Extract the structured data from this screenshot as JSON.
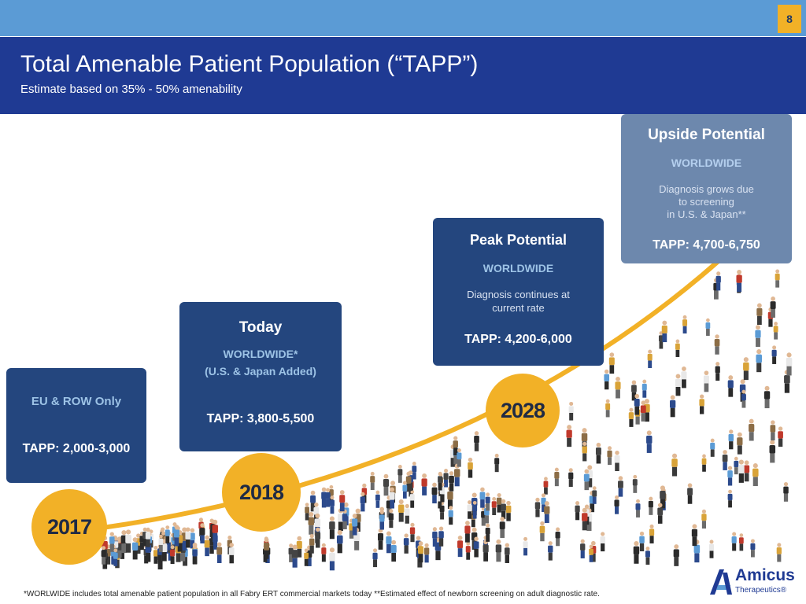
{
  "page_number": "8",
  "header": {
    "title": "Total Amenable Patient Population (“TAPP”)",
    "subtitle": "Estimate based on 35% - 50% amenability"
  },
  "boxes": {
    "y2017": {
      "region": "EU & ROW Only",
      "tapp": "TAPP: 2,000-3,000"
    },
    "y2018": {
      "heading": "Today",
      "region_line1": "WORLDWIDE*",
      "region_line2": "(U.S. & Japan Added)",
      "tapp": "TAPP: 3,800-5,500"
    },
    "y2028": {
      "heading": "Peak Potential",
      "region": "WORLDWIDE",
      "desc_line1": "Diagnosis continues at",
      "desc_line2": "current rate",
      "tapp": "TAPP: 4,200-6,000"
    },
    "upside": {
      "heading": "Upside Potential",
      "region": "WORLDWIDE",
      "desc_line1": "Diagnosis grows due",
      "desc_line2": "to screening",
      "desc_line3": "in U.S. & Japan**",
      "tapp": "TAPP: 4,700-6,750"
    }
  },
  "milestones": {
    "y2017": "2017",
    "y2018": "2018",
    "y2028": "2028"
  },
  "footnote": "*WORLWIDE includes total amenable patient population in all Fabry ERT commercial markets today **Estimated effect of newborn screening on adult diagnostic rate.",
  "logo": {
    "name": "Amicus",
    "sub": "Therapeutics®"
  },
  "colors": {
    "navy": "#1f3a93",
    "box": "#24467e",
    "upside_box": "#6d88ad",
    "gold": "#f2b127",
    "sky": "#5b9bd5"
  }
}
